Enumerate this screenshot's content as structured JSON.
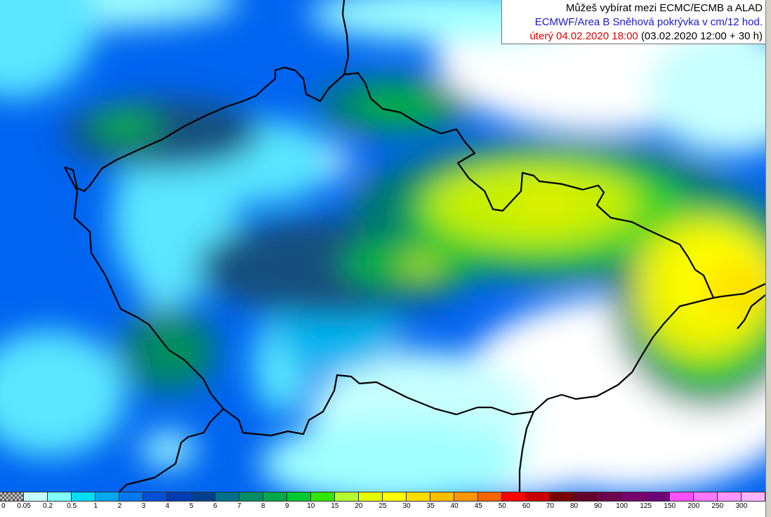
{
  "header": {
    "line1": "Můžeš vybírat mezi ECMC/ECMB a ALAD",
    "line2": "ECMWF/Area B Sněhová pokrývka v cm/12 hod.",
    "valid_date": "úterý 04.02.2020 18:00",
    "run_info": "(03.02.2020 12:00 + 30 h)"
  },
  "legend": {
    "labels": [
      "0",
      "0.05",
      "0.2",
      "0.5",
      "1",
      "2",
      "3",
      "4",
      "5",
      "6",
      "7",
      "8",
      "9",
      "10",
      "15",
      "20",
      "25",
      "30",
      "35",
      "40",
      "45",
      "50",
      "60",
      "70",
      "80",
      "90",
      "100",
      "125",
      "150",
      "200",
      "250",
      "300"
    ],
    "colors": [
      "#a0a0a0",
      "#c8ffff",
      "#80ffff",
      "#00ddff",
      "#00a8f0",
      "#0078f0",
      "#0050d8",
      "#003cb4",
      "#004090",
      "#00708c",
      "#008c64",
      "#00a84a",
      "#00c832",
      "#32e600",
      "#b4ff32",
      "#e6ff00",
      "#ffff00",
      "#ffdc00",
      "#ffbe00",
      "#ff9600",
      "#ff6400",
      "#ff0000",
      "#c80000",
      "#780000",
      "#64002d",
      "#6e0050",
      "#78006e",
      "#6e0078",
      "#ff50ff",
      "#ff78ff",
      "#ff96ff",
      "#ffb4ff"
    ]
  },
  "map": {
    "level_colors": [
      "#ffffff",
      "#c8ffff",
      "#a0ffff",
      "#5ae6ff",
      "#00b4f0",
      "#0096ff",
      "#006ee6",
      "#0050d2",
      "#0f3cb4",
      "#14507d",
      "#00786e",
      "#00965a",
      "#00b43c",
      "#32d228",
      "#78e100",
      "#c8f000",
      "#e6f000",
      "#ffff00",
      "#ffe000",
      "#ffc800"
    ],
    "border_color": "#000000"
  }
}
